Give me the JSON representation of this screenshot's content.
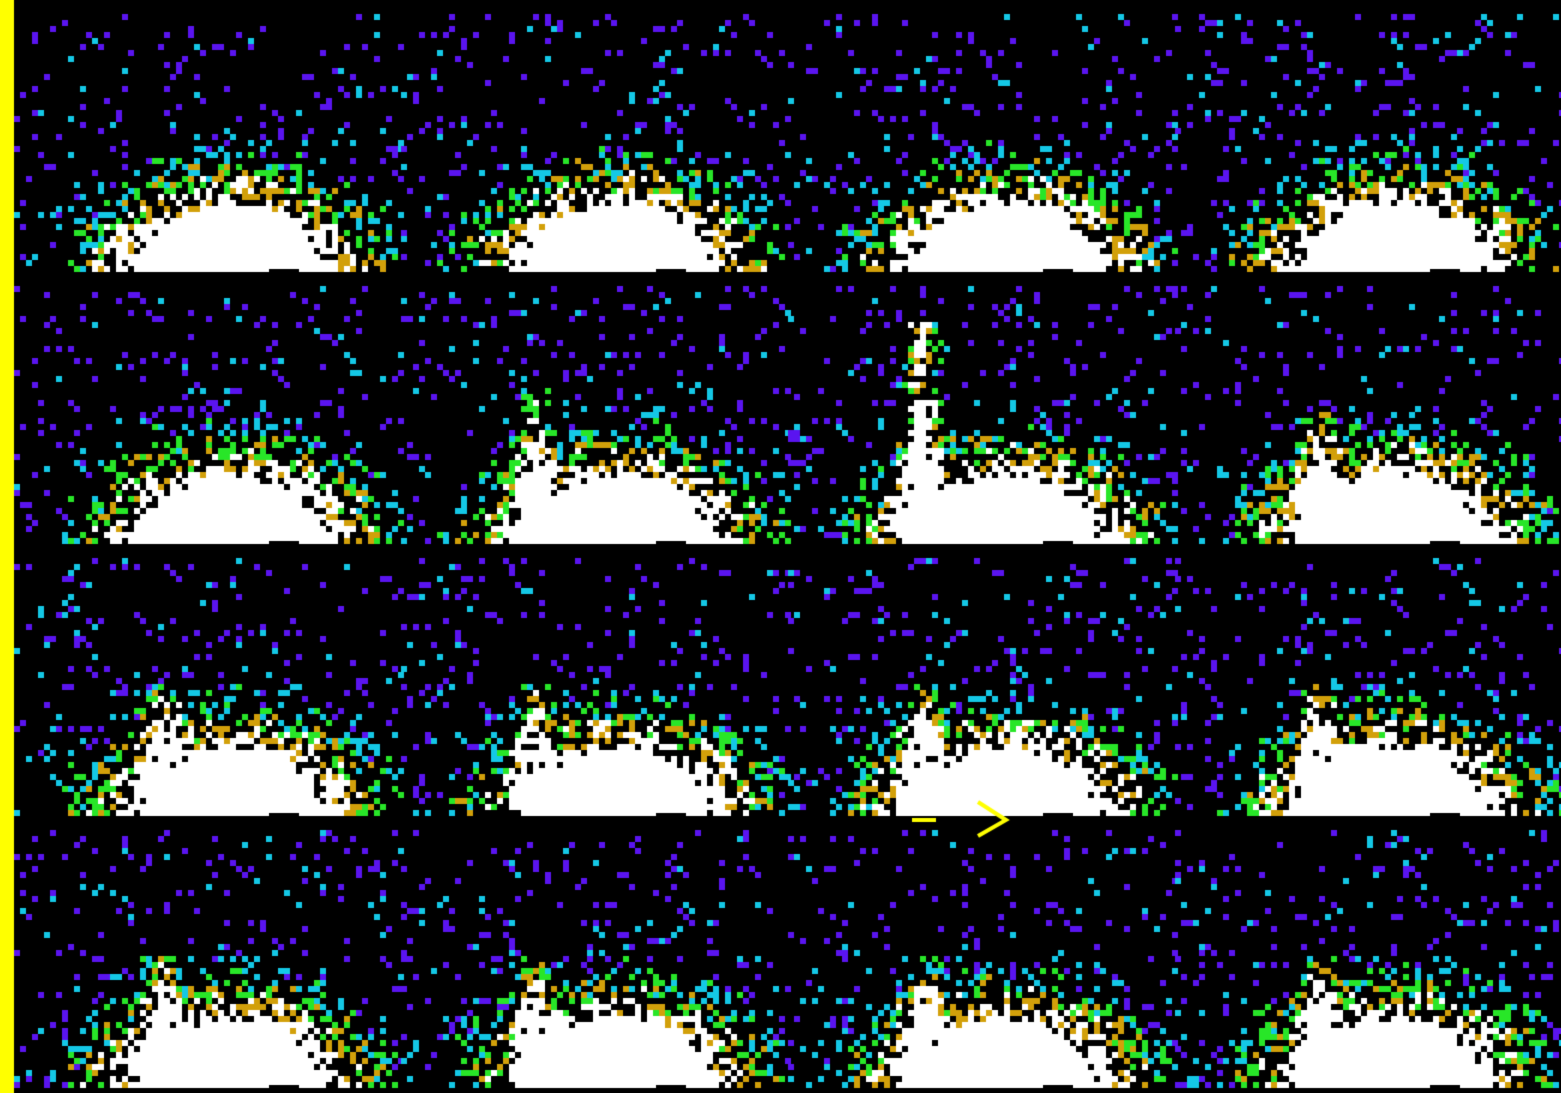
{
  "image": {
    "kind": "scintigraphy-frame-grid",
    "rows": 4,
    "columns": 4,
    "frame_count": 16,
    "colors": {
      "background": "#000000",
      "border": "#ffff00",
      "marker": "#ffff00",
      "palette_low": "#5a14f0",
      "palette_mid_low": "#14c8e6",
      "palette_mid": "#28e628",
      "palette_mid_high": "#d2a00a",
      "palette_high": "#ffffff"
    },
    "frames": [
      {
        "index": 1,
        "plume": 0.0,
        "tilt": 0.0
      },
      {
        "index": 2,
        "plume": 0.0,
        "tilt": 0.0
      },
      {
        "index": 3,
        "plume": 0.0,
        "tilt": 0.0
      },
      {
        "index": 4,
        "plume": 0.0,
        "tilt": 0.0
      },
      {
        "index": 5,
        "plume": 0.1,
        "tilt": 0.0
      },
      {
        "index": 6,
        "plume": 0.7,
        "tilt": 0.0
      },
      {
        "index": 7,
        "plume": 1.0,
        "tilt": 0.0
      },
      {
        "index": 8,
        "plume": 0.6,
        "tilt": 0.0
      },
      {
        "index": 9,
        "plume": 0.6,
        "tilt": 0.0
      },
      {
        "index": 10,
        "plume": 0.6,
        "tilt": 0.0
      },
      {
        "index": 11,
        "plume": 0.6,
        "tilt": 0.0
      },
      {
        "index": 12,
        "plume": 0.6,
        "tilt": 0.0
      },
      {
        "index": 13,
        "plume": 0.6,
        "tilt": 0.0
      },
      {
        "index": 14,
        "plume": 0.6,
        "tilt": 0.0
      },
      {
        "index": 15,
        "plume": 0.6,
        "tilt": 0.0
      },
      {
        "index": 16,
        "plume": 0.6,
        "tilt": 0.0
      }
    ],
    "marker_frame": 11
  }
}
